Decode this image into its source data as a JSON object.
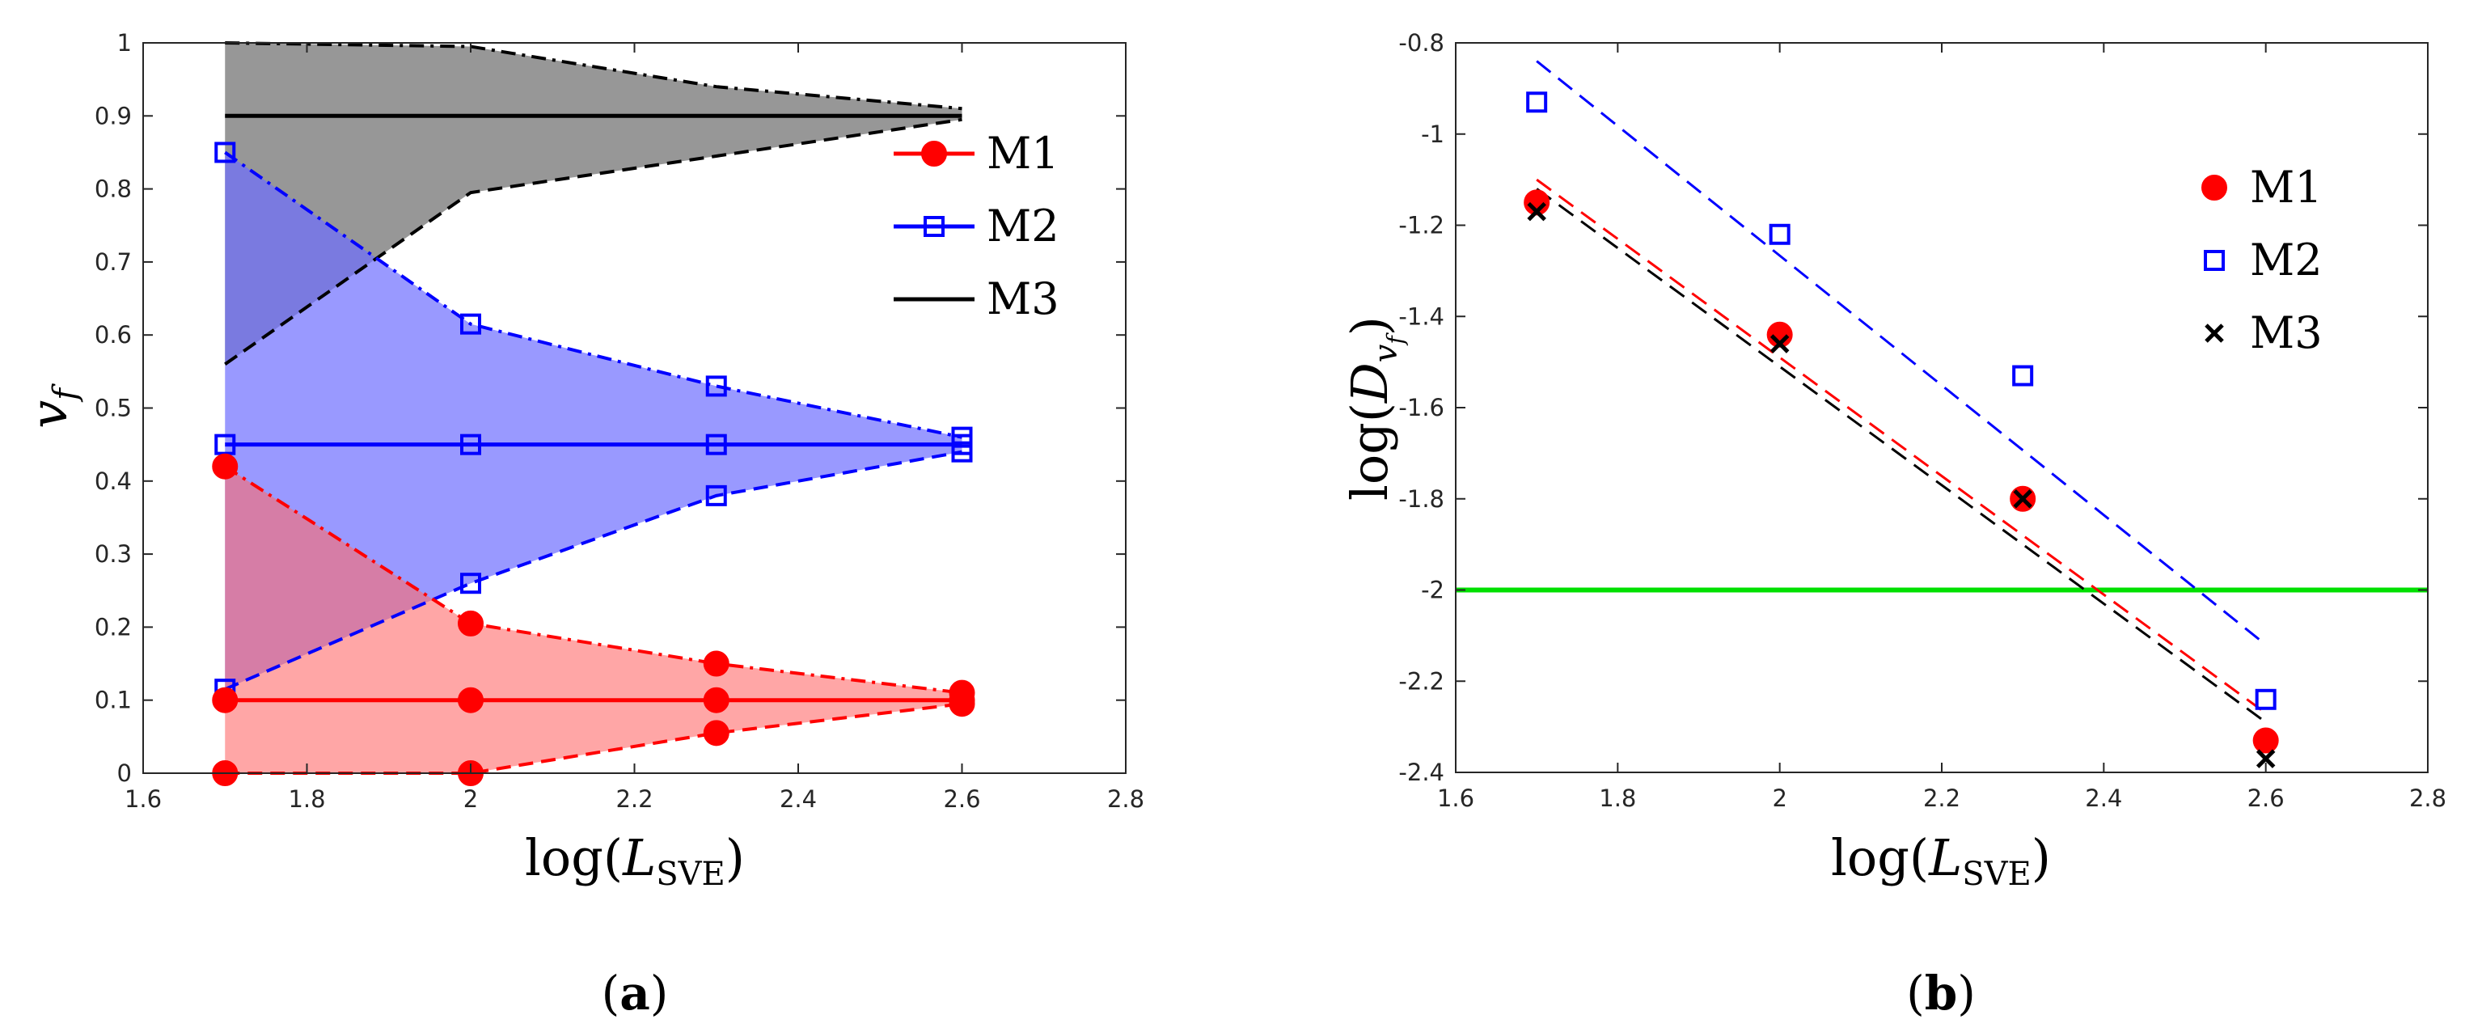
{
  "chart_data": [
    {
      "panel": "a",
      "caption_letter": "a",
      "type": "line",
      "xlabel_prefix": "log(",
      "xlabel_var": "L",
      "xlabel_sub": "SVE",
      "xlabel_suffix": ")",
      "ylabel_var": "v",
      "ylabel_sub": "f",
      "xlim": [
        1.6,
        2.8
      ],
      "ylim": [
        0,
        1
      ],
      "xticks": [
        1.6,
        1.8,
        2,
        2.2,
        2.4,
        2.6,
        2.8
      ],
      "xtick_labels": [
        "1.6",
        "1.8",
        "2",
        "2.2",
        "2.4",
        "2.6",
        "2.8"
      ],
      "yticks": [
        0,
        0.1,
        0.2,
        0.3,
        0.4,
        0.5,
        0.6,
        0.7,
        0.8,
        0.9,
        1
      ],
      "ytick_labels": [
        "0",
        "0.1",
        "0.2",
        "0.3",
        "0.4",
        "0.5",
        "0.6",
        "0.7",
        "0.8",
        "0.9",
        "1"
      ],
      "x": [
        1.7,
        2.0,
        2.3,
        2.6
      ],
      "series": [
        {
          "name": "M3",
          "color": "#000000",
          "fill": "#7a7a7a",
          "fill_opacity": 0.78,
          "marker": "none",
          "mean": [
            0.9,
            0.9,
            0.9,
            0.9
          ],
          "upper": [
            1.0,
            0.995,
            0.94,
            0.91
          ],
          "lower": [
            0.56,
            0.795,
            0.845,
            0.895
          ]
        },
        {
          "name": "M2",
          "color": "#0000ff",
          "fill": "#6e6eff",
          "fill_opacity": 0.7,
          "marker": "square",
          "mean": [
            0.45,
            0.45,
            0.45,
            0.45
          ],
          "upper": [
            0.85,
            0.615,
            0.53,
            0.46
          ],
          "lower": [
            0.115,
            0.26,
            0.38,
            0.44
          ]
        },
        {
          "name": "M1",
          "color": "#ff0000",
          "fill": "#ff6a6a",
          "fill_opacity": 0.6,
          "marker": "circle",
          "mean": [
            0.1,
            0.1,
            0.1,
            0.1
          ],
          "upper": [
            0.42,
            0.205,
            0.15,
            0.11
          ],
          "lower": [
            0.0,
            0.0,
            0.055,
            0.095
          ]
        }
      ],
      "legend": [
        {
          "label": "M1",
          "color": "#ff0000",
          "marker": "circle"
        },
        {
          "label": "M2",
          "color": "#0000ff",
          "marker": "square"
        },
        {
          "label": "M3",
          "color": "#000000",
          "marker": "none"
        }
      ],
      "legend_position": "top-right"
    },
    {
      "panel": "b",
      "caption_letter": "b",
      "type": "scatter",
      "xlabel_prefix": "log(",
      "xlabel_var": "L",
      "xlabel_sub": "SVE",
      "xlabel_suffix": ")",
      "ylabel_prefix": "log(",
      "ylabel_var": "D",
      "ylabel_sub": "v",
      "ylabel_subsub": "f",
      "ylabel_suffix": ")",
      "xlim": [
        1.6,
        2.8
      ],
      "ylim": [
        -2.4,
        -0.8
      ],
      "xticks": [
        1.6,
        1.8,
        2,
        2.2,
        2.4,
        2.6,
        2.8
      ],
      "xtick_labels": [
        "1.6",
        "1.8",
        "2",
        "2.2",
        "2.4",
        "2.6",
        "2.8"
      ],
      "yticks": [
        -2.4,
        -2.2,
        -2,
        -1.8,
        -1.6,
        -1.4,
        -1.2,
        -1,
        -0.8
      ],
      "ytick_labels": [
        "-2.4",
        "-2.2",
        "-2",
        "-1.8",
        "-1.6",
        "-1.4",
        "-1.2",
        "-1",
        "-0.8"
      ],
      "series": [
        {
          "name": "M1",
          "color": "#ff0000",
          "marker": "circle",
          "x": [
            1.7,
            2.0,
            2.3,
            2.6
          ],
          "y": [
            -1.15,
            -1.44,
            -1.8,
            -2.33
          ],
          "fit": {
            "x": [
              1.7,
              2.6
            ],
            "y": [
              -1.1,
              -2.27
            ]
          }
        },
        {
          "name": "M2",
          "color": "#0000ff",
          "marker": "square",
          "x": [
            1.7,
            2.0,
            2.3,
            2.6
          ],
          "y": [
            -0.93,
            -1.22,
            -1.53,
            -2.24
          ],
          "fit": {
            "x": [
              1.7,
              2.6
            ],
            "y": [
              -0.84,
              -2.12
            ]
          }
        },
        {
          "name": "M3",
          "color": "#000000",
          "marker": "cross",
          "x": [
            1.7,
            2.0,
            2.3,
            2.6
          ],
          "y": [
            -1.17,
            -1.46,
            -1.8,
            -2.37
          ],
          "fit": {
            "x": [
              1.7,
              2.6
            ],
            "y": [
              -1.12,
              -2.29
            ]
          }
        }
      ],
      "reference_line": {
        "y": -2.0,
        "color": "#00e000"
      },
      "legend": [
        {
          "label": "M1",
          "color": "#ff0000",
          "marker": "circle"
        },
        {
          "label": "M2",
          "color": "#0000ff",
          "marker": "square"
        },
        {
          "label": "M3",
          "color": "#000000",
          "marker": "cross"
        }
      ],
      "legend_position": "top-right"
    }
  ]
}
